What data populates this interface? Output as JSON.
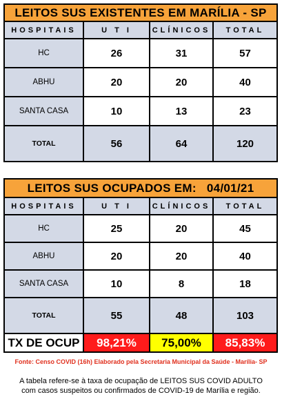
{
  "table1": {
    "title": "LEITOS SUS EXISTENTES EM MARÍLIA - SP",
    "headers": [
      "HOSPITAIS",
      "U T I",
      "CLÍNICOS",
      "TOTAL"
    ],
    "rows": [
      {
        "name": "HC",
        "uti": "26",
        "clinicos": "31",
        "total": "57"
      },
      {
        "name": "ABHU",
        "uti": "20",
        "clinicos": "20",
        "total": "40"
      },
      {
        "name": "SANTA CASA",
        "uti": "10",
        "clinicos": "13",
        "total": "23"
      },
      {
        "name": "TOTAL",
        "uti": "56",
        "clinicos": "64",
        "total": "120"
      }
    ]
  },
  "table2": {
    "title": "LEITOS SUS OCUPADOS EM:   04/01/21",
    "headers": [
      "HOSPITAIS",
      "U T I",
      "CLÍNICOS",
      "TOTAL"
    ],
    "rows": [
      {
        "name": "HC",
        "uti": "25",
        "clinicos": "20",
        "total": "45"
      },
      {
        "name": "ABHU",
        "uti": "20",
        "clinicos": "20",
        "total": "40"
      },
      {
        "name": "SANTA CASA",
        "uti": "10",
        "clinicos": "8",
        "total": "18"
      },
      {
        "name": "TOTAL",
        "uti": "55",
        "clinicos": "48",
        "total": "103"
      }
    ],
    "rate": {
      "label": "TX DE OCUP",
      "uti": "98,21%",
      "clinicos": "75,00%",
      "total": "85,83%"
    }
  },
  "colors": {
    "title_bg": "#f7a33a",
    "header_bg": "#d3d9e6",
    "red": "#ff1b1b",
    "yellow": "#ffff00"
  },
  "source": "Fonte: Censo COVID (16h) Elaborado pela Secretaria Municipal da Saúde - Marília- SP",
  "note_line1": "A tabela refere-se à taxa de ocupação de LEITOS SUS COVID ADULTO",
  "note_line2": "com casos suspeitos ou confirmados de COVID-19 de Marília e região."
}
